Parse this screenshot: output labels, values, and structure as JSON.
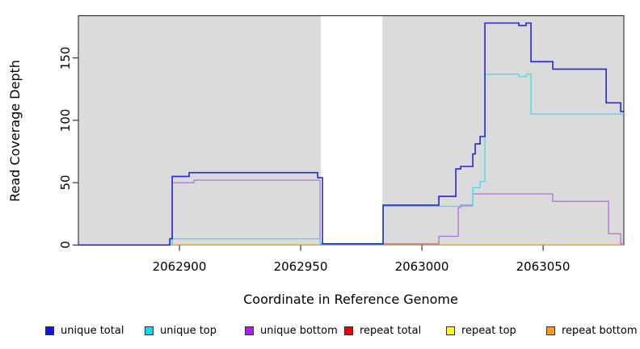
{
  "chart_data": {
    "type": "line",
    "subtype": "step",
    "title": "",
    "xlabel": "Coordinate in Reference Genome",
    "ylabel": "Read Coverage Depth",
    "xlim": [
      2062858.3,
      2063083.3
    ],
    "ylim": [
      0,
      184
    ],
    "xticks": [
      2062900,
      2062950,
      2063000,
      2063050
    ],
    "xtick_labels": [
      "2062900",
      "2062950",
      "2063000",
      "2063050"
    ],
    "yticks": [
      0,
      50,
      100,
      150
    ],
    "ytick_labels": [
      "0",
      "50",
      "100",
      "150"
    ],
    "grid": false,
    "plot_background": "#ffffff",
    "shaded_regions": [
      {
        "x_start": 2062858.3,
        "x_end": 2062958.3,
        "color": "#DBDBDB"
      },
      {
        "x_start": 2062983.7,
        "x_end": 2063083.3,
        "color": "#DBDBDB"
      }
    ],
    "series": [
      {
        "name": "unique total",
        "color": "#2626D8",
        "width": 1.6,
        "steps": [
          [
            2062858.3,
            0
          ],
          [
            2062896,
            5
          ],
          [
            2062897,
            55
          ],
          [
            2062904,
            58
          ],
          [
            2062957,
            54
          ],
          [
            2062959,
            1
          ],
          [
            2062984,
            32
          ],
          [
            2063007,
            39
          ],
          [
            2063014,
            61
          ],
          [
            2063016,
            63
          ],
          [
            2063021,
            73
          ],
          [
            2063022,
            81
          ],
          [
            2063024,
            87
          ],
          [
            2063026,
            178
          ],
          [
            2063040,
            176
          ],
          [
            2063043,
            178
          ],
          [
            2063045,
            147
          ],
          [
            2063054,
            141
          ],
          [
            2063076,
            114
          ],
          [
            2063082,
            107
          ]
        ]
      },
      {
        "name": "unique top",
        "color": "#45DEE6",
        "width": 1.3,
        "steps": [
          [
            2062858.3,
            0
          ],
          [
            2062897,
            5
          ],
          [
            2062958,
            0
          ],
          [
            2062984,
            31
          ],
          [
            2063021,
            46
          ],
          [
            2063024,
            51
          ],
          [
            2063026,
            137
          ],
          [
            2063040,
            135
          ],
          [
            2063043,
            137
          ],
          [
            2063045,
            105
          ]
        ]
      },
      {
        "name": "unique bottom",
        "color": "#B06FE0",
        "width": 1.3,
        "steps": [
          [
            2062858.3,
            0
          ],
          [
            2062897,
            50
          ],
          [
            2062906,
            52
          ],
          [
            2062958,
            1
          ],
          [
            2063007,
            7
          ],
          [
            2063015,
            30
          ],
          [
            2063016,
            32
          ],
          [
            2063021,
            41
          ],
          [
            2063054,
            35
          ],
          [
            2063077,
            9
          ],
          [
            2063082,
            1
          ]
        ]
      },
      {
        "name": "repeat total",
        "color": "#E00000",
        "width": 1.2,
        "steps": [
          [
            2062858.3,
            0
          ]
        ]
      },
      {
        "name": "repeat top",
        "color": "#FFFF00",
        "width": 1.2,
        "steps": [
          [
            2062858.3,
            0
          ]
        ]
      },
      {
        "name": "repeat bottom",
        "color": "#FFA500",
        "width": 1.2,
        "steps": [
          [
            2062858.3,
            0
          ]
        ]
      }
    ],
    "legend": {
      "position": "bottom",
      "items": [
        {
          "label": "unique total",
          "color": "#1414E6"
        },
        {
          "label": "unique top",
          "color": "#00E1EB"
        },
        {
          "label": "unique bottom",
          "color": "#A226EF"
        },
        {
          "label": "repeat total",
          "color": "#EA0000"
        },
        {
          "label": "repeat top",
          "color": "#FFFF00"
        },
        {
          "label": "repeat bottom",
          "color": "#FF9E00"
        }
      ]
    }
  }
}
